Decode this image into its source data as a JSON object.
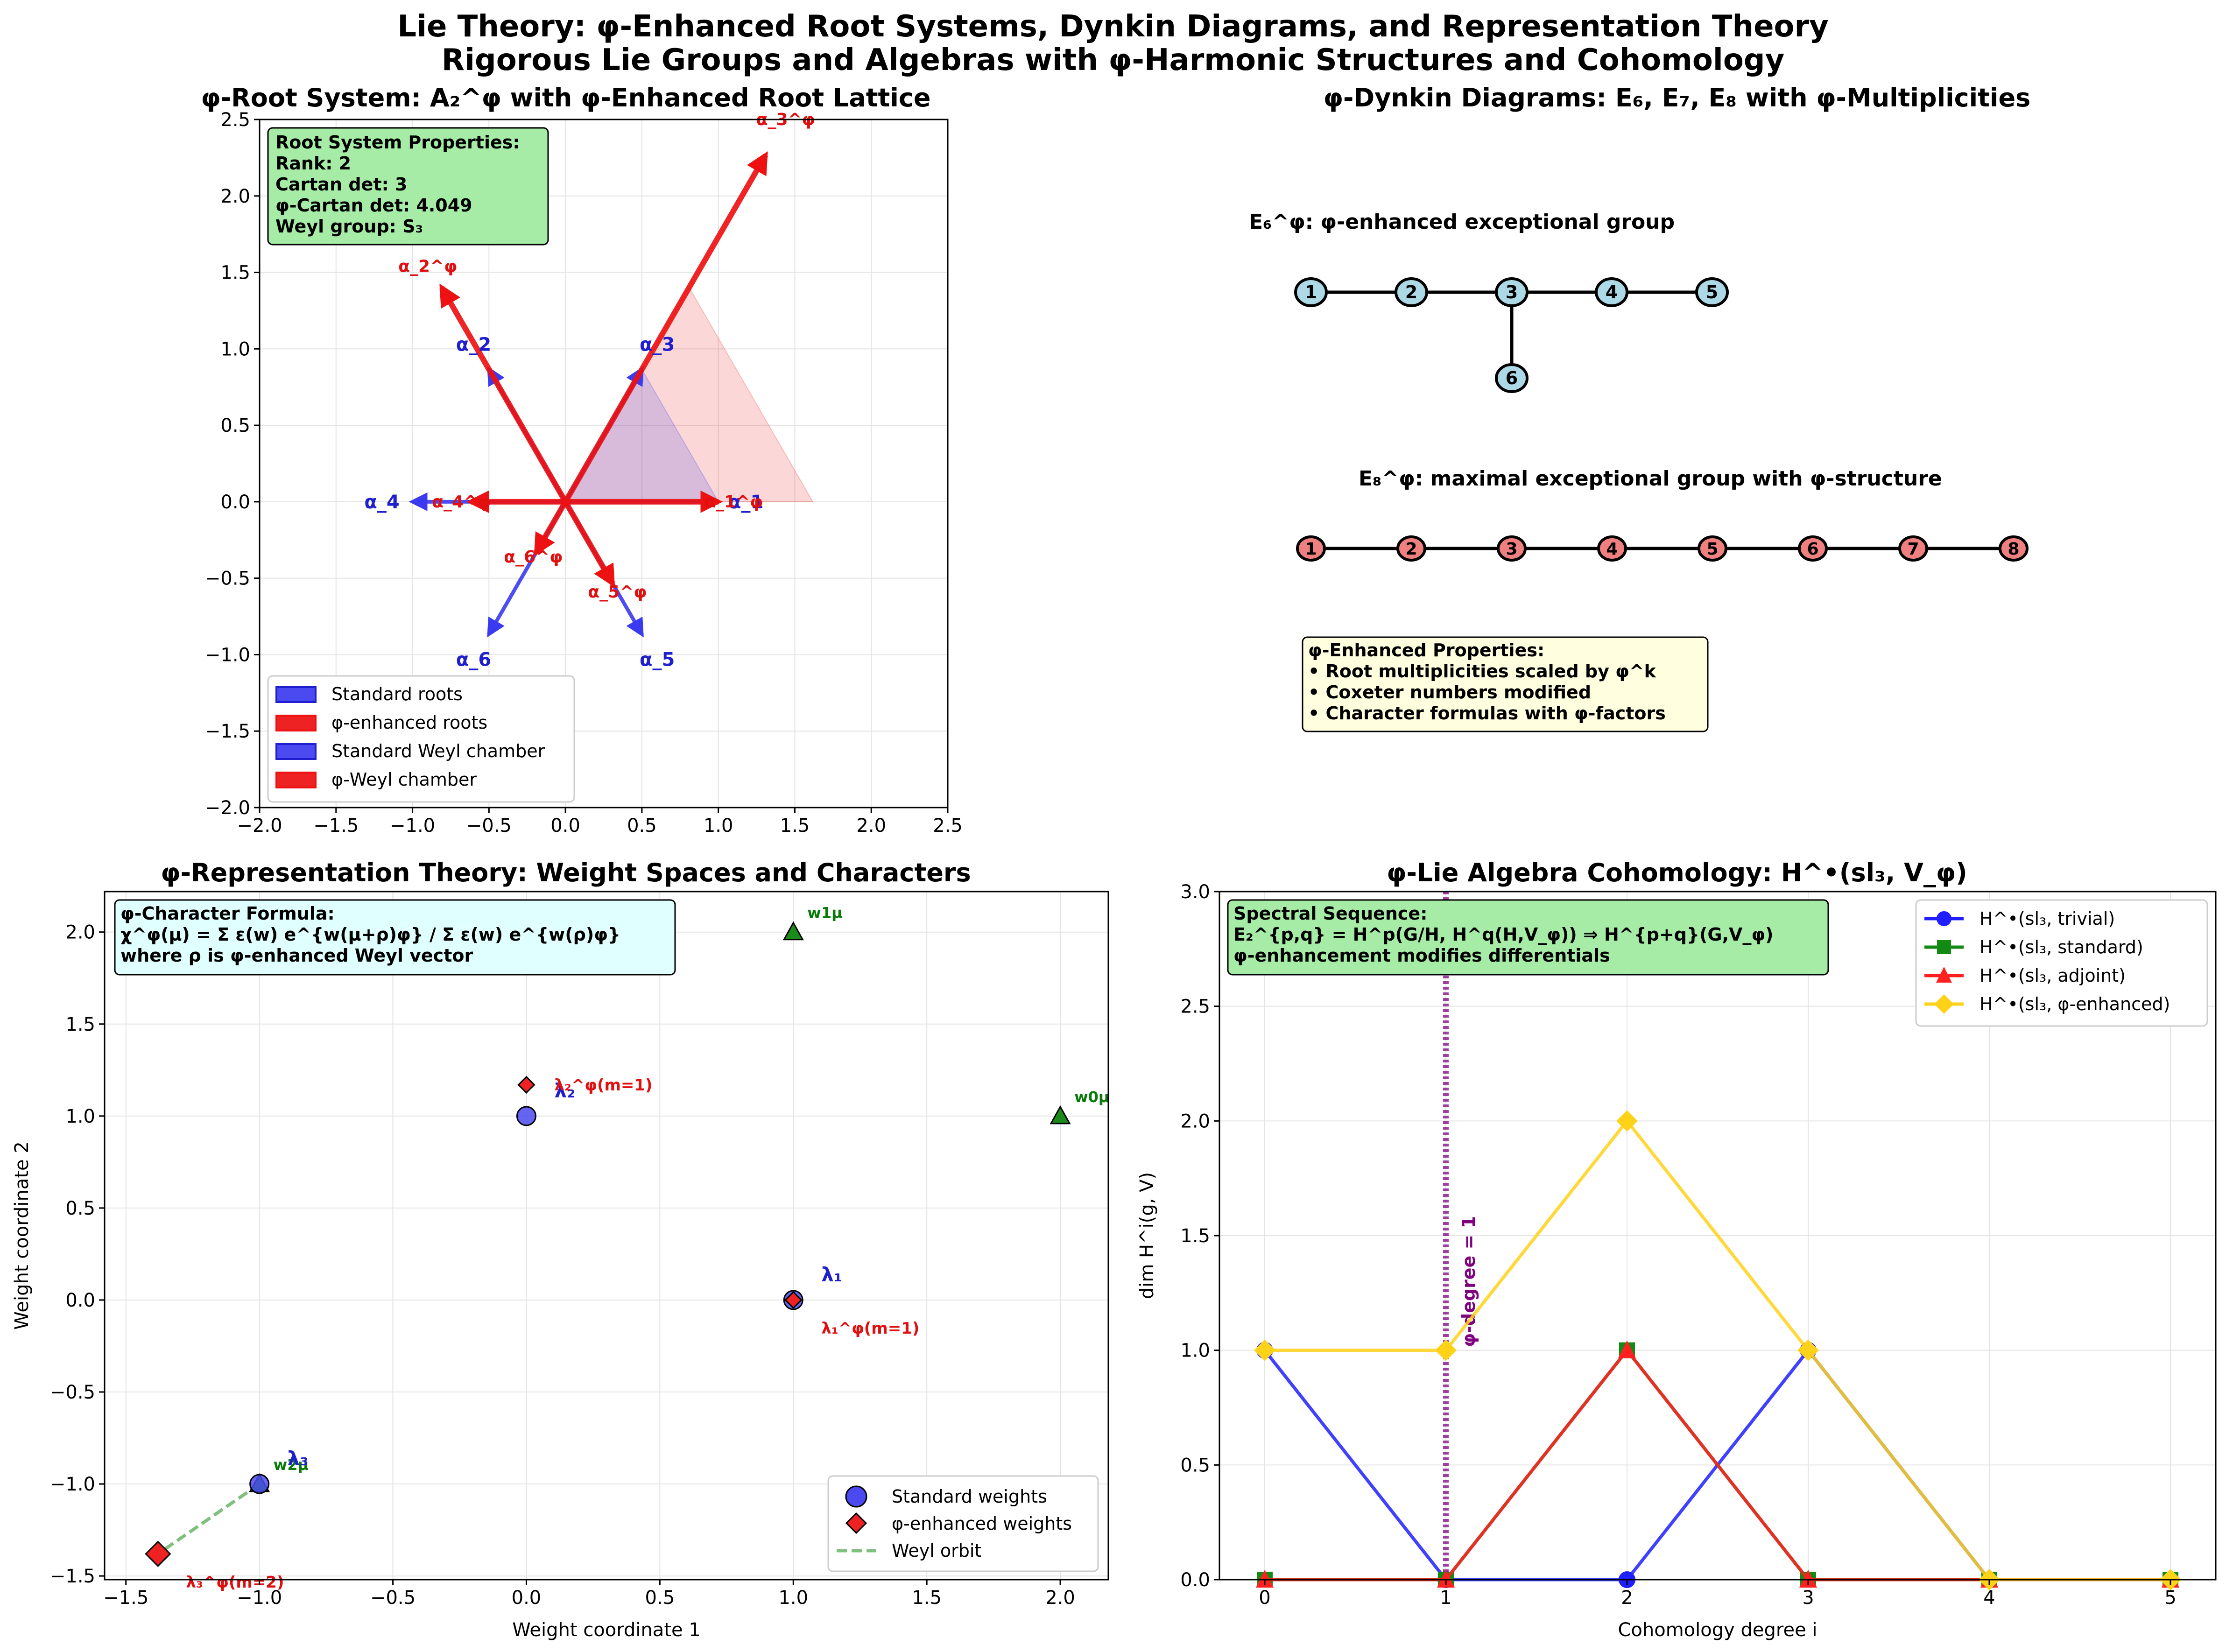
{
  "figure": {
    "title_line1": "Lie Theory: φ-Enhanced Root Systems, Dynkin Diagrams, and Representation Theory",
    "title_line2": "Rigorous Lie Groups and Algebras with φ-Harmonic Structures and Cohomology"
  },
  "chart_data": [
    {
      "type": "vector",
      "title": "φ-Root System: A₂^φ with φ-Enhanced Root Lattice",
      "xlim": [
        -2.0,
        2.5
      ],
      "ylim": [
        -2.0,
        2.5
      ],
      "xticks": [
        "−2.0",
        "−1.5",
        "−1.0",
        "−0.5",
        "0.0",
        "0.5",
        "1.0",
        "1.5",
        "2.0",
        "2.5"
      ],
      "yticks": [
        "−2.0",
        "−1.5",
        "−1.0",
        "−0.5",
        "0.0",
        "0.5",
        "1.0",
        "1.5",
        "2.0",
        "2.5"
      ],
      "grid": true,
      "standard_roots": [
        {
          "label": "α_1",
          "x": 1.0,
          "y": 0.0,
          "lx": 1.18,
          "ly": 0.0
        },
        {
          "label": "α_2",
          "x": -0.5,
          "y": 0.866,
          "lx": -0.6,
          "ly": 1.03
        },
        {
          "label": "α_3",
          "x": 0.5,
          "y": 0.866,
          "lx": 0.6,
          "ly": 1.03
        },
        {
          "label": "α_4",
          "x": -1.0,
          "y": 0.0,
          "lx": -1.2,
          "ly": 0.0
        },
        {
          "label": "α_5",
          "x": 0.5,
          "y": -0.866,
          "lx": 0.6,
          "ly": -1.03
        },
        {
          "label": "α_6",
          "x": -0.5,
          "y": -0.866,
          "lx": -0.6,
          "ly": -1.03
        }
      ],
      "phi_roots": [
        {
          "label": "α_1^φ",
          "x": 1.0,
          "y": 0.0,
          "lx": 1.1,
          "ly": 0.0
        },
        {
          "label": "α_2^φ",
          "x": -0.809,
          "y": 1.401,
          "lx": -0.9,
          "ly": 1.54
        },
        {
          "label": "α_3^φ",
          "x": 1.309,
          "y": 2.267,
          "lx": 1.44,
          "ly": 2.5
        },
        {
          "label": "α_4^φ",
          "x": -0.618,
          "y": 0.0,
          "lx": -0.68,
          "ly": 0.0
        },
        {
          "label": "α_5^φ",
          "x": 0.309,
          "y": -0.535,
          "lx": 0.34,
          "ly": -0.59
        },
        {
          "label": "α_6^φ",
          "x": -0.191,
          "y": -0.331,
          "lx": -0.21,
          "ly": -0.36
        }
      ],
      "standard_chamber": [
        [
          0,
          0
        ],
        [
          1.0,
          0
        ],
        [
          0.5,
          0.866
        ]
      ],
      "phi_chamber": [
        [
          0,
          0
        ],
        [
          1.618,
          0
        ],
        [
          0.809,
          1.401
        ]
      ],
      "legend": [
        "Standard roots",
        "φ-enhanced roots",
        "Standard Weyl chamber",
        "φ-Weyl chamber"
      ],
      "legend_position": "lower-left",
      "properties_box": [
        "Root System Properties:",
        "Rank: 2",
        "Cartan det: 3",
        "φ-Cartan det: 4.049",
        "Weyl group: S₃"
      ]
    },
    {
      "type": "diagram",
      "title": "φ-Dynkin Diagrams: E₆, E₇, E₈ with φ-Multiplicities",
      "e6_label": "E₆^φ: φ-enhanced exceptional group",
      "e6_nodes": [
        "1",
        "2",
        "3",
        "4",
        "5",
        "6"
      ],
      "e8_label": "E₈^φ: maximal exceptional group with φ-structure",
      "e8_nodes": [
        "1",
        "2",
        "3",
        "4",
        "5",
        "6",
        "7",
        "8"
      ],
      "properties_box": [
        "φ-Enhanced Properties:",
        "• Root multiplicities scaled by φ^k",
        "• Coxeter numbers modified",
        "• Character formulas with φ-factors"
      ]
    },
    {
      "type": "scatter",
      "title": "φ-Representation Theory: Weight Spaces and Characters",
      "xlabel": "Weight coordinate 1",
      "ylabel": "Weight coordinate 2",
      "xlim": [
        -1.58,
        2.18
      ],
      "ylim": [
        -1.52,
        2.22
      ],
      "xticks": [
        "−1.5",
        "−1.0",
        "−0.5",
        "0.0",
        "0.5",
        "1.0",
        "1.5",
        "2.0"
      ],
      "yticks": [
        "−1.5",
        "−1.0",
        "−0.5",
        "0.0",
        "0.5",
        "1.0",
        "1.5",
        "2.0"
      ],
      "grid": true,
      "standard_weights": [
        {
          "label": "λ₁",
          "x": 1.0,
          "y": 0.0
        },
        {
          "label": "λ₂",
          "x": 0.0,
          "y": 1.0
        },
        {
          "label": "λ₃",
          "x": -1.0,
          "y": -1.0
        }
      ],
      "phi_weights": [
        {
          "label": "λ₁^φ(m=1)",
          "x": 1.0,
          "y": 0.0
        },
        {
          "label": "λ₂^φ(m=1)",
          "x": 0.0,
          "y": 1.17
        },
        {
          "label": "λ₃^φ(m=2)",
          "x": -1.38,
          "y": -1.38
        }
      ],
      "weyl_orbit_points": [
        {
          "label": "w0μ",
          "x": 2.0,
          "y": 1.0
        },
        {
          "label": "w1μ",
          "x": 1.0,
          "y": 2.0
        },
        {
          "label": "w2μ",
          "x": -1.0,
          "y": -1.0
        }
      ],
      "weyl_orbit_line": [
        [
          -1.0,
          -1.0
        ],
        [
          -1.38,
          -1.38
        ]
      ],
      "legend": [
        "Standard weights",
        "φ-enhanced weights",
        "Weyl orbit"
      ],
      "legend_position": "lower-right",
      "formula_box": [
        "φ-Character Formula:",
        "χ^φ(μ) = Σ ε(w) e^{w(μ+ρ)φ} / Σ ε(w) e^{w(ρ)φ}",
        "where ρ is φ-enhanced Weyl vector"
      ]
    },
    {
      "type": "line",
      "title": "φ-Lie Algebra Cohomology: H^•(sl₃, V_φ)",
      "xlabel": "Cohomology degree i",
      "ylabel": "dim H^i(g, V)",
      "xlim": [
        -0.25,
        5.25
      ],
      "ylim": [
        0,
        3.0
      ],
      "xticks": [
        "0",
        "1",
        "2",
        "3",
        "4",
        "5"
      ],
      "yticks": [
        "0.0",
        "0.5",
        "1.0",
        "1.5",
        "2.0",
        "2.5",
        "3.0"
      ],
      "grid": true,
      "x": [
        0,
        1,
        2,
        3,
        4,
        5
      ],
      "series": [
        {
          "name": "H^•(sl₃, trivial)",
          "values": [
            1,
            0,
            0,
            1,
            0,
            0
          ],
          "color": "#1f1fff",
          "marker": "circle"
        },
        {
          "name": "H^•(sl₃, standard)",
          "values": [
            0,
            0,
            1,
            0,
            0,
            0
          ],
          "color": "#138a13",
          "marker": "square"
        },
        {
          "name": "H^•(sl₃, adjoint)",
          "values": [
            0,
            0,
            1,
            0,
            0,
            0
          ],
          "color": "#ff2020",
          "marker": "triangle"
        },
        {
          "name": "H^•(sl₃, φ-enhanced)",
          "values": [
            1,
            1,
            2,
            1,
            0,
            0
          ],
          "color": "#ffd21a",
          "marker": "diamond"
        }
      ],
      "vline": {
        "x": 1,
        "label": "φ-degree = 1",
        "color": "#800080"
      },
      "legend_position": "upper-right",
      "spectral_box": [
        "Spectral Sequence:",
        "E₂^{p,q} = H^p(G/H, H^q(H,V_φ)) ⇒ H^{p+q}(G,V_φ)",
        "φ-enhancement modifies differentials"
      ]
    }
  ]
}
